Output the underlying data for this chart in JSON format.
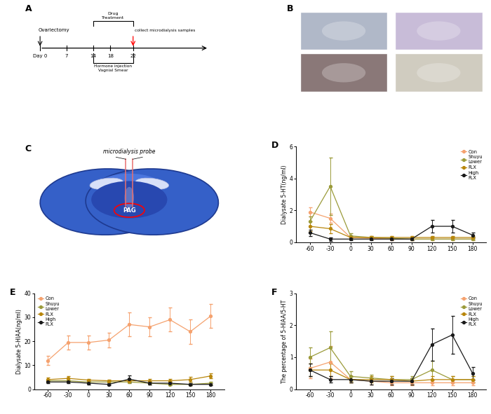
{
  "panel_labels": [
    "A",
    "B",
    "C",
    "D",
    "E",
    "F"
  ],
  "x_ticks": [
    -60,
    -30,
    0,
    30,
    60,
    90,
    120,
    150,
    180
  ],
  "D_ylabel": "Dialysate 5-HT(ng/ml)",
  "D_ylim": [
    0,
    6
  ],
  "D_yticks": [
    0,
    2,
    4,
    6
  ],
  "D_data": {
    "Con": {
      "y": [
        1.9,
        1.5,
        0.3,
        0.25,
        0.2,
        0.2,
        0.2,
        0.2,
        0.2
      ],
      "err": [
        0.3,
        0.3,
        0.1,
        0.08,
        0.08,
        0.08,
        0.08,
        0.08,
        0.08
      ]
    },
    "Shuyu Lower": {
      "y": [
        1.3,
        3.5,
        0.4,
        0.3,
        0.25,
        0.2,
        0.2,
        0.2,
        0.2
      ],
      "err": [
        0.3,
        1.8,
        0.15,
        0.1,
        0.1,
        0.08,
        0.08,
        0.08,
        0.08
      ]
    },
    "FLX": {
      "y": [
        1.0,
        0.85,
        0.3,
        0.3,
        0.3,
        0.3,
        0.3,
        0.3,
        0.3
      ],
      "err": [
        0.3,
        0.3,
        0.1,
        0.1,
        0.1,
        0.1,
        0.1,
        0.1,
        0.1
      ]
    },
    "High FLX": {
      "y": [
        0.6,
        0.2,
        0.2,
        0.2,
        0.2,
        0.2,
        1.0,
        1.0,
        0.45
      ],
      "err": [
        0.2,
        0.1,
        0.08,
        0.08,
        0.08,
        0.08,
        0.4,
        0.4,
        0.15
      ]
    }
  },
  "D_colors": {
    "Con": "#F5A26F",
    "Shuyu Lower": "#9B9B3A",
    "FLX": "#B8860B",
    "High FLX": "#1a1a1a"
  },
  "E_ylabel": "Dialysate 5-HIAA(ng/ml)",
  "E_ylim": [
    0,
    40
  ],
  "E_yticks": [
    0,
    10,
    20,
    30,
    40
  ],
  "E_data": {
    "Con": {
      "y": [
        12,
        19.5,
        19.5,
        20.5,
        27,
        26,
        29,
        24,
        30.5
      ],
      "err": [
        2,
        3,
        3,
        3,
        5,
        4,
        5,
        5,
        5
      ]
    },
    "Shuyu Lower": {
      "y": [
        3.5,
        3.5,
        3.0,
        3.0,
        3.0,
        2.5,
        2.0,
        2.0,
        2.5
      ],
      "err": [
        0.5,
        0.5,
        0.5,
        0.5,
        0.5,
        0.5,
        0.5,
        0.5,
        0.5
      ]
    },
    "FLX": {
      "y": [
        4.0,
        4.5,
        3.8,
        3.5,
        3.5,
        3.5,
        3.5,
        4.0,
        5.5
      ],
      "err": [
        0.8,
        0.8,
        0.5,
        0.5,
        0.5,
        0.8,
        0.8,
        1.0,
        1.0
      ]
    },
    "High FLX": {
      "y": [
        3.0,
        3.0,
        2.5,
        2.0,
        4.2,
        2.5,
        2.5,
        2.0,
        2.0
      ],
      "err": [
        0.5,
        0.5,
        0.5,
        0.5,
        1.5,
        0.5,
        0.5,
        0.5,
        0.5
      ]
    }
  },
  "E_colors": {
    "Con": "#F5A26F",
    "Shuyu Lower": "#9B9B3A",
    "FLX": "#B8860B",
    "High FLX": "#1a1a1a"
  },
  "F_ylabel": "The percentage of 5-HIAA/5-HT",
  "F_ylim": [
    0,
    3
  ],
  "F_yticks": [
    0,
    1,
    2,
    3
  ],
  "F_data": {
    "Con": {
      "y": [
        0.65,
        0.85,
        0.3,
        0.25,
        0.2,
        0.2,
        0.2,
        0.2,
        0.2
      ],
      "err": [
        0.3,
        0.5,
        0.1,
        0.1,
        0.08,
        0.08,
        0.08,
        0.08,
        0.08
      ]
    },
    "Shuyu Lower": {
      "y": [
        1.0,
        1.3,
        0.4,
        0.35,
        0.3,
        0.3,
        0.6,
        0.3,
        0.3
      ],
      "err": [
        0.3,
        0.5,
        0.15,
        0.1,
        0.1,
        0.1,
        0.3,
        0.1,
        0.1
      ]
    },
    "FLX": {
      "y": [
        0.6,
        0.6,
        0.3,
        0.3,
        0.3,
        0.25,
        0.3,
        0.3,
        0.3
      ],
      "err": [
        0.2,
        0.2,
        0.1,
        0.1,
        0.1,
        0.1,
        0.1,
        0.1,
        0.1
      ]
    },
    "High FLX": {
      "y": [
        0.6,
        0.3,
        0.3,
        0.25,
        0.25,
        0.25,
        1.4,
        1.7,
        0.5
      ],
      "err": [
        0.2,
        0.1,
        0.1,
        0.1,
        0.1,
        0.1,
        0.5,
        0.6,
        0.2
      ]
    }
  },
  "F_colors": {
    "Con": "#F5A26F",
    "Shuyu Lower": "#9B9B3A",
    "FLX": "#B8860B",
    "High FLX": "#1a1a1a"
  },
  "legend_entries": [
    {
      "label": "Con",
      "color": "#F5A26F"
    },
    {
      "label": "Shuyu\nLower",
      "color": "#9B9B3A"
    },
    {
      "label": "FLX",
      "color": "#B8860B"
    },
    {
      "label": "High\nFLX",
      "color": "#1a1a1a"
    }
  ],
  "bg_color": "#ffffff"
}
